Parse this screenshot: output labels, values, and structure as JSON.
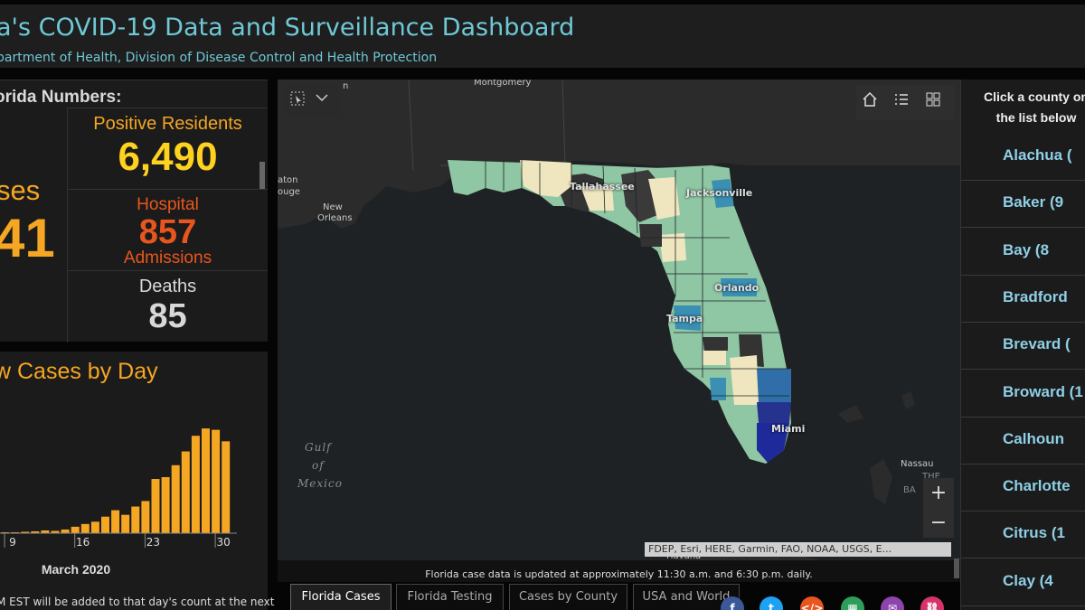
{
  "header": {
    "title": "a's COVID-19 Data and Surveillance Dashboard",
    "subtitle": "partment of Health, Division of Disease Control and Health Protection"
  },
  "numbers": {
    "heading": "orida Numbers:",
    "cases_label": "ses",
    "cases_value": "41",
    "positive_label": "Positive Residents",
    "positive_value": "6,490",
    "hospital_label": "Hospital",
    "hospital_value": "857",
    "admissions_label": "Admissions",
    "deaths_label": "Deaths",
    "deaths_value": "85"
  },
  "chart_panel": {
    "title": "w Cases by Day",
    "month_label": "March 2020",
    "note": "M EST will be added to that day's count at the next"
  },
  "chart_data": {
    "type": "bar",
    "title": "w Cases by Day",
    "xlabel": "March 2020",
    "ylabel": "",
    "tick_labels": [
      "9",
      "16",
      "23",
      "30"
    ],
    "categories": [
      "9",
      "10",
      "11",
      "12",
      "13",
      "14",
      "15",
      "16",
      "17",
      "18",
      "19",
      "20",
      "21",
      "22",
      "23",
      "24",
      "25",
      "26",
      "27",
      "28",
      "29",
      "30",
      "31"
    ],
    "values": [
      2,
      2,
      3,
      4,
      6,
      5,
      8,
      14,
      20,
      25,
      36,
      50,
      40,
      58,
      70,
      118,
      122,
      148,
      178,
      212,
      228,
      225,
      200
    ],
    "ylim": [
      0,
      240
    ],
    "color": "#f5a623"
  },
  "map": {
    "labels": {
      "montgomery": "Montgomery",
      "tallahassee": "Tallahassee",
      "jacksonville": "Jacksonville",
      "orlando": "Orlando",
      "tampa": "Tampa",
      "miami": "Miami",
      "new_orleans_1": "New",
      "new_orleans_2": "Orleans",
      "baton_1": "aton",
      "baton_2": "ouge",
      "partial_on": "n",
      "gulf_1": "Gulf",
      "gulf_2": "of",
      "gulf_3": "Mexico",
      "nassau": "Nassau",
      "bahamas_1": "THE",
      "bahamas_2": "BA",
      "havana": "Havana"
    },
    "zoom_in": "+",
    "zoom_out": "−",
    "attribution": "FDEP, Esri, HERE, Garmin, FAO, NOAA, USGS, E...",
    "update_text": "Florida case data is updated at approximately 11:30 a.m. and 6:30 p.m. daily."
  },
  "tabs": [
    {
      "label": "Florida Cases",
      "active": true
    },
    {
      "label": "Florida Testing",
      "active": false
    },
    {
      "label": "Cases by County",
      "active": false
    },
    {
      "label": "USA and World",
      "active": false
    }
  ],
  "county_panel": {
    "heading_1": "Click a county on",
    "heading_2": "the list below",
    "counties": [
      {
        "name": "Alachua ("
      },
      {
        "name": "Baker (9"
      },
      {
        "name": "Bay (8"
      },
      {
        "name": "Bradford"
      },
      {
        "name": "Brevard ("
      },
      {
        "name": "Broward (1"
      },
      {
        "name": "Calhoun"
      },
      {
        "name": "Charlotte"
      },
      {
        "name": "Citrus (1"
      },
      {
        "name": "Clay (4"
      }
    ]
  },
  "colors": {
    "title_cyan": "#6fc8d6",
    "orange": "#f5a623",
    "yellow": "#ffd21f",
    "red_orange": "#e8561e",
    "county_blue": "#8fcfe6"
  }
}
